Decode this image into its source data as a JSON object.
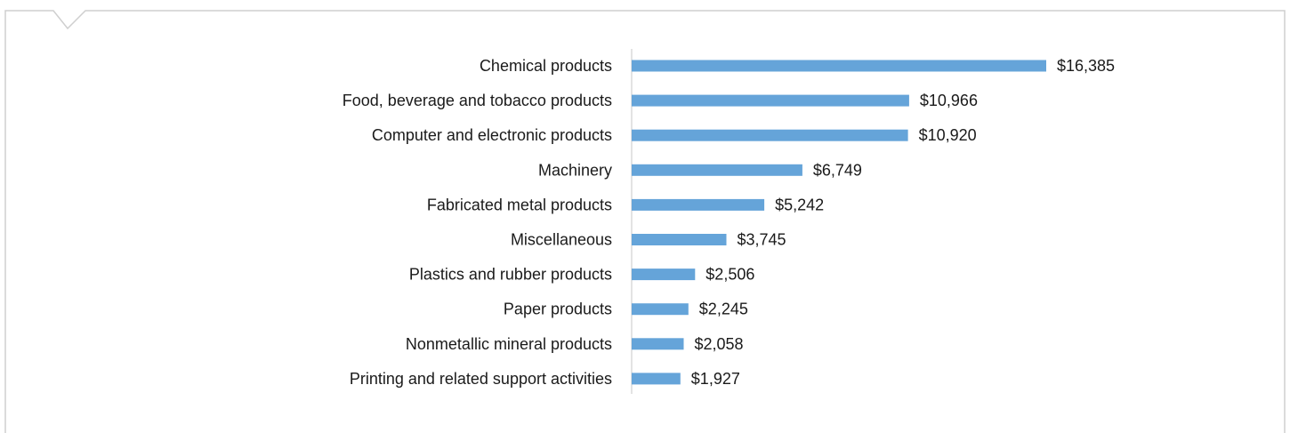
{
  "colors": {
    "bar": "#65a4d9",
    "frame": "#cfcfcf",
    "axis": "#d0d0d0",
    "text": "#1a1a1a"
  },
  "chart_data": {
    "type": "bar",
    "orientation": "horizontal",
    "title": "",
    "xlabel": "",
    "ylabel": "",
    "categories": [
      "Chemical products",
      "Food, beverage and tobacco products",
      "Computer and electronic products",
      "Machinery",
      "Fabricated metal products",
      "Miscellaneous",
      "Plastics and rubber products",
      "Paper products",
      "Nonmetallic mineral products",
      "Printing and related support activities"
    ],
    "values": [
      16385,
      10966,
      10920,
      6749,
      5242,
      3745,
      2506,
      2245,
      2058,
      1927
    ],
    "value_labels": [
      "$16,385",
      "$10,966",
      "$10,920",
      "$6,749",
      "$5,242",
      "$3,745",
      "$2,506",
      "$2,245",
      "$2,058",
      "$1,927"
    ],
    "xlim": [
      0,
      16385
    ],
    "grid": false,
    "legend": "none"
  }
}
